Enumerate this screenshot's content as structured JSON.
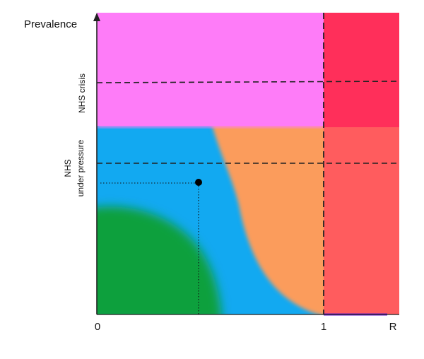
{
  "y_axis": {
    "title": "Prevalence"
  },
  "x_axis": {
    "title": "R",
    "ticks": [
      {
        "value": 0,
        "label": "0"
      },
      {
        "value": 1,
        "label": "1"
      }
    ]
  },
  "thresholds": {
    "crisis": {
      "label": "NHS crisis"
    },
    "pressure": {
      "label_line1": "NHS",
      "label_line2": "under pressure"
    }
  },
  "regions": [
    {
      "name": "crisis-zone",
      "color": "#fe7cf8"
    },
    {
      "name": "epidemic-growth-zone",
      "color": "#ff5c5e"
    },
    {
      "name": "epidemic-growth-crisis-zone",
      "color": "#ff2f5a"
    },
    {
      "name": "declining-zone",
      "color": "#12a9f1"
    },
    {
      "name": "warning-zone",
      "color": "#fb9c5c"
    },
    {
      "name": "safe-zone",
      "color": "#08a03d"
    }
  ],
  "current_state_point": {
    "marker": "filled-circle",
    "color": "#000000"
  }
}
